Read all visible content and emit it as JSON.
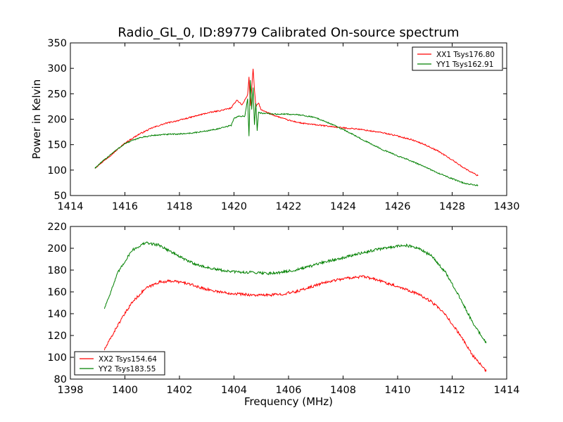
{
  "title": "Radio_GL_0, ID:89779 Calibrated On-source spectrum",
  "colors": {
    "red": "#ff0000",
    "green": "#008000"
  },
  "chart_data": [
    {
      "type": "line",
      "title": "Radio_GL_0, ID:89779 Calibrated On-source spectrum",
      "xlabel": "",
      "ylabel": "Power in Kelvin",
      "xlim": [
        1414,
        1430
      ],
      "ylim": [
        50,
        350
      ],
      "xticks": [
        1414,
        1416,
        1418,
        1420,
        1422,
        1424,
        1426,
        1428,
        1430
      ],
      "yticks": [
        50,
        100,
        150,
        200,
        250,
        300,
        350
      ],
      "legend_position": "top-right",
      "grid": false,
      "series": [
        {
          "name": "XX1 Tsys176.80",
          "color": "#ff0000",
          "x": [
            1414.9,
            1415.5,
            1416,
            1416.5,
            1417,
            1417.5,
            1418,
            1418.5,
            1419,
            1419.5,
            1419.9,
            1420.1,
            1420.3,
            1420.5,
            1420.55,
            1420.6,
            1420.65,
            1420.7,
            1420.75,
            1420.8,
            1420.9,
            1421,
            1421.5,
            1422,
            1422.5,
            1423,
            1423.5,
            1424,
            1424.5,
            1425,
            1425.5,
            1426,
            1426.5,
            1427,
            1427.5,
            1428,
            1428.5,
            1428.95
          ],
          "y": [
            104,
            130,
            153,
            170,
            183,
            192,
            198,
            205,
            212,
            217,
            222,
            238,
            228,
            248,
            283,
            225,
            262,
            300,
            258,
            225,
            232,
            218,
            207,
            198,
            192,
            189,
            186,
            183,
            181,
            177,
            173,
            167,
            160,
            150,
            137,
            120,
            102,
            89
          ]
        },
        {
          "name": "YY1 Tsys162.91",
          "color": "#008000",
          "x": [
            1414.9,
            1415.5,
            1416,
            1416.5,
            1417,
            1417.5,
            1418,
            1418.5,
            1419,
            1419.5,
            1419.9,
            1420.0,
            1420.2,
            1420.4,
            1420.5,
            1420.55,
            1420.6,
            1420.65,
            1420.7,
            1420.75,
            1420.8,
            1420.85,
            1420.9,
            1421,
            1421.5,
            1422,
            1422.5,
            1423,
            1423.5,
            1424,
            1424.5,
            1425,
            1425.5,
            1426,
            1426.5,
            1427,
            1427.5,
            1428,
            1428.5,
            1428.95
          ],
          "y": [
            104,
            132,
            152,
            163,
            168,
            170,
            171,
            173,
            177,
            182,
            188,
            202,
            206,
            206,
            240,
            166,
            278,
            220,
            262,
            190,
            232,
            178,
            214,
            212,
            210,
            210,
            208,
            203,
            192,
            180,
            166,
            152,
            139,
            128,
            118,
            106,
            94,
            83,
            73,
            70
          ]
        }
      ]
    },
    {
      "type": "line",
      "title": "",
      "xlabel": "Frequency (MHz)",
      "ylabel": "",
      "xlim": [
        1398,
        1414
      ],
      "ylim": [
        80,
        220
      ],
      "xticks": [
        1398,
        1400,
        1402,
        1404,
        1406,
        1408,
        1410,
        1412,
        1414
      ],
      "yticks": [
        80,
        100,
        120,
        140,
        160,
        180,
        200,
        220
      ],
      "legend_position": "bottom-left",
      "grid": false,
      "series": [
        {
          "name": "XX2 Tsys154.64",
          "color": "#ff0000",
          "x": [
            1399.25,
            1399.75,
            1400.25,
            1400.75,
            1401.25,
            1401.75,
            1402.25,
            1402.75,
            1403.25,
            1403.75,
            1404.25,
            1404.75,
            1405.25,
            1405.75,
            1406.25,
            1406.75,
            1407.25,
            1407.75,
            1408.25,
            1408.75,
            1409.25,
            1409.75,
            1410.25,
            1410.75,
            1411.25,
            1411.75,
            1412.25,
            1412.75,
            1413.25
          ],
          "y": [
            107,
            130,
            150,
            163,
            169,
            170,
            168,
            164,
            161,
            159,
            158,
            157,
            157,
            158,
            160,
            164,
            168,
            171,
            173,
            174,
            171,
            167,
            163,
            158,
            151,
            139,
            122,
            102,
            87
          ]
        },
        {
          "name": "YY2 Tsys183.55",
          "color": "#008000",
          "x": [
            1399.25,
            1399.75,
            1400.25,
            1400.75,
            1401.25,
            1401.75,
            1402.25,
            1402.75,
            1403.25,
            1403.75,
            1404.25,
            1404.75,
            1405.25,
            1405.75,
            1406.25,
            1406.75,
            1407.25,
            1407.75,
            1408.25,
            1408.75,
            1409.25,
            1409.75,
            1410.25,
            1410.75,
            1411.25,
            1411.75,
            1412.25,
            1412.75,
            1413.25
          ],
          "y": [
            145,
            178,
            198,
            205,
            203,
            196,
            189,
            184,
            181,
            179,
            178,
            178,
            177,
            178,
            180,
            183,
            187,
            190,
            193,
            196,
            199,
            201,
            203,
            200,
            193,
            178,
            156,
            132,
            113
          ]
        }
      ]
    }
  ]
}
